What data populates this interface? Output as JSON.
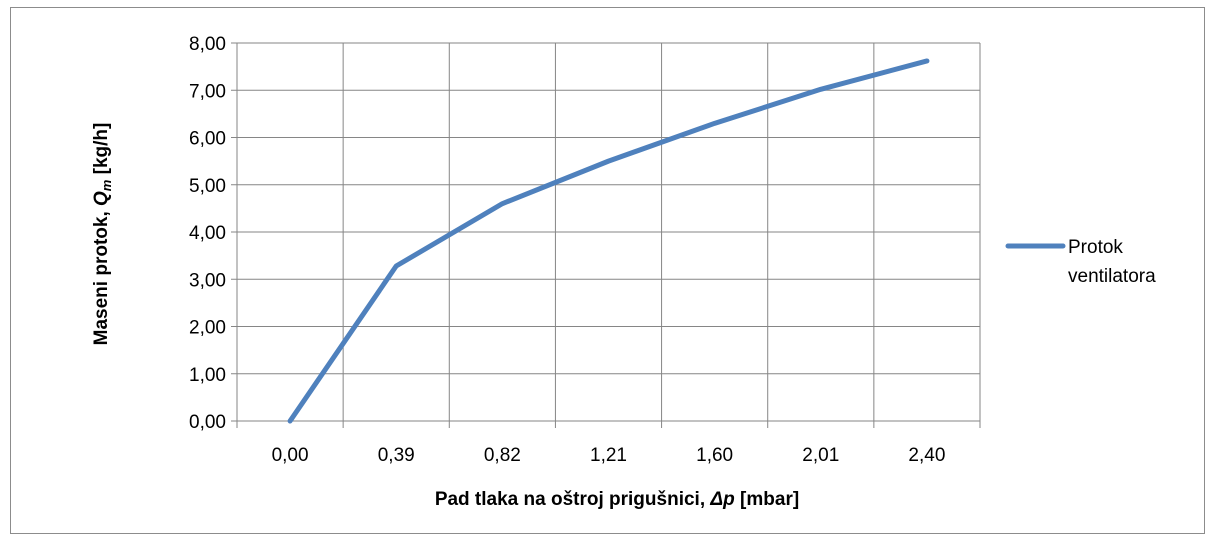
{
  "chart_data": {
    "type": "line",
    "x_tick_labels": [
      "0,00",
      "0,39",
      "0,82",
      "1,21",
      "1,60",
      "2,01",
      "2,40"
    ],
    "y_tick_labels": [
      "0,00",
      "1,00",
      "2,00",
      "3,00",
      "4,00",
      "5,00",
      "6,00",
      "7,00",
      "8,00"
    ],
    "ylim": [
      0,
      8
    ],
    "xlabel_main": "Pad tlaka na oštroj prigušnici, ",
    "xlabel_symbol": "Δp",
    "xlabel_unit": " [mbar]",
    "ylabel_main": "Maseni protok, ",
    "ylabel_symbol": "Q",
    "ylabel_sub": "m",
    "ylabel_unit": " [kg/h]",
    "grid": true,
    "legend_position": "right",
    "series": [
      {
        "name_lines": [
          "Protok",
          "ventilatora"
        ],
        "color": "#4f81bd",
        "values": [
          0.0,
          3.28,
          4.6,
          5.5,
          6.3,
          7.02,
          7.62
        ]
      }
    ]
  }
}
